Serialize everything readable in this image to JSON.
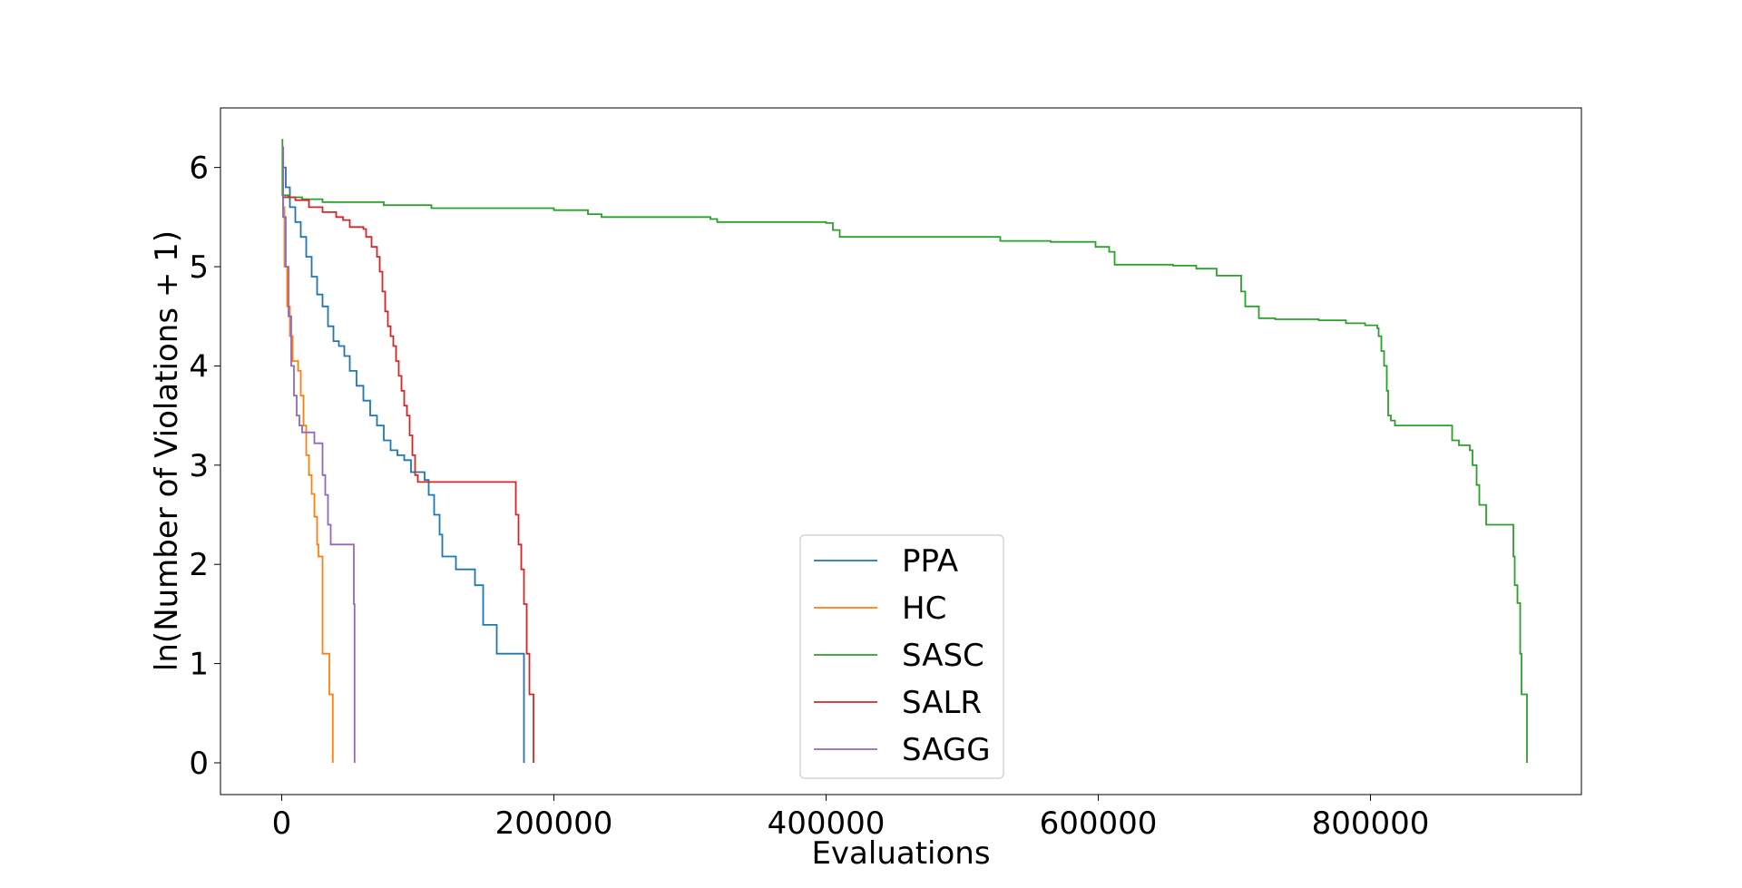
{
  "chart_data": {
    "type": "line",
    "title": "",
    "xlabel": "Evaluations",
    "ylabel": "ln(Number of Violations + 1)",
    "xlim": [
      -45000,
      955000
    ],
    "ylim": [
      -0.32,
      6.6
    ],
    "xticks": [
      0,
      200000,
      400000,
      600000,
      800000
    ],
    "yticks": [
      0,
      1,
      2,
      3,
      4,
      5,
      6
    ],
    "grid": false,
    "legend_position": "lower-center",
    "step": true,
    "series": [
      {
        "name": "PPA",
        "color": "#1f77b4",
        "points": [
          [
            0,
            6.2
          ],
          [
            1000,
            6.0
          ],
          [
            3000,
            5.8
          ],
          [
            6000,
            5.6
          ],
          [
            10000,
            5.45
          ],
          [
            14000,
            5.3
          ],
          [
            18000,
            5.1
          ],
          [
            22000,
            4.9
          ],
          [
            26000,
            4.72
          ],
          [
            30000,
            4.6
          ],
          [
            34000,
            4.4
          ],
          [
            38000,
            4.25
          ],
          [
            42000,
            4.2
          ],
          [
            46000,
            4.1
          ],
          [
            50000,
            3.95
          ],
          [
            55000,
            3.8
          ],
          [
            60000,
            3.65
          ],
          [
            65000,
            3.5
          ],
          [
            70000,
            3.4
          ],
          [
            75000,
            3.25
          ],
          [
            80000,
            3.15
          ],
          [
            85000,
            3.1
          ],
          [
            90000,
            3.05
          ],
          [
            95000,
            2.93
          ],
          [
            105000,
            2.85
          ],
          [
            108000,
            2.7
          ],
          [
            112000,
            2.5
          ],
          [
            116000,
            2.3
          ],
          [
            118000,
            2.08
          ],
          [
            128000,
            1.95
          ],
          [
            142000,
            1.79
          ],
          [
            148000,
            1.39
          ],
          [
            158000,
            1.1
          ],
          [
            178000,
            0.0
          ]
        ]
      },
      {
        "name": "HC",
        "color": "#ff7f0e",
        "points": [
          [
            0,
            6.2
          ],
          [
            1000,
            5.6
          ],
          [
            2000,
            5.0
          ],
          [
            4000,
            4.6
          ],
          [
            6000,
            4.3
          ],
          [
            8000,
            4.05
          ],
          [
            12000,
            3.95
          ],
          [
            14000,
            3.7
          ],
          [
            16000,
            3.4
          ],
          [
            18000,
            3.1
          ],
          [
            20000,
            2.9
          ],
          [
            22000,
            2.71
          ],
          [
            24000,
            2.48
          ],
          [
            26000,
            2.2
          ],
          [
            27000,
            2.08
          ],
          [
            30000,
            1.1
          ],
          [
            33000,
            1.1
          ],
          [
            35000,
            0.69
          ],
          [
            37000,
            0.69
          ],
          [
            37500,
            0.0
          ]
        ]
      },
      {
        "name": "SASC",
        "color": "#2ca02c",
        "points": [
          [
            0,
            6.28
          ],
          [
            500,
            5.72
          ],
          [
            5000,
            5.7
          ],
          [
            15000,
            5.68
          ],
          [
            30000,
            5.65
          ],
          [
            75000,
            5.62
          ],
          [
            110000,
            5.59
          ],
          [
            200000,
            5.57
          ],
          [
            225000,
            5.53
          ],
          [
            235000,
            5.5
          ],
          [
            315000,
            5.48
          ],
          [
            320000,
            5.45
          ],
          [
            400000,
            5.44
          ],
          [
            405000,
            5.37
          ],
          [
            410000,
            5.3
          ],
          [
            500000,
            5.3
          ],
          [
            528000,
            5.26
          ],
          [
            560000,
            5.26
          ],
          [
            565000,
            5.25
          ],
          [
            598000,
            5.2
          ],
          [
            608000,
            5.15
          ],
          [
            612000,
            5.02
          ],
          [
            655000,
            5.01
          ],
          [
            672000,
            4.98
          ],
          [
            687000,
            4.91
          ],
          [
            705000,
            4.75
          ],
          [
            708000,
            4.6
          ],
          [
            718000,
            4.48
          ],
          [
            730000,
            4.47
          ],
          [
            762000,
            4.46
          ],
          [
            782000,
            4.43
          ],
          [
            796000,
            4.41
          ],
          [
            805000,
            4.38
          ],
          [
            806000,
            4.3
          ],
          [
            808000,
            4.15
          ],
          [
            810000,
            4.0
          ],
          [
            812000,
            3.75
          ],
          [
            813000,
            3.5
          ],
          [
            815000,
            3.45
          ],
          [
            818000,
            3.4
          ],
          [
            858000,
            3.4
          ],
          [
            860000,
            3.25
          ],
          [
            865000,
            3.2
          ],
          [
            873000,
            3.15
          ],
          [
            875000,
            3.0
          ],
          [
            878000,
            2.8
          ],
          [
            880000,
            2.6
          ],
          [
            885000,
            2.4
          ],
          [
            903000,
            2.4
          ],
          [
            905000,
            2.08
          ],
          [
            906000,
            1.79
          ],
          [
            908000,
            1.61
          ],
          [
            910000,
            1.1
          ],
          [
            911000,
            0.69
          ],
          [
            915000,
            0.69
          ],
          [
            915000,
            0.0
          ]
        ]
      },
      {
        "name": "SALR",
        "color": "#d62728",
        "points": [
          [
            0,
            6.2
          ],
          [
            1000,
            5.7
          ],
          [
            10000,
            5.67
          ],
          [
            20000,
            5.6
          ],
          [
            30000,
            5.55
          ],
          [
            40000,
            5.5
          ],
          [
            45000,
            5.47
          ],
          [
            50000,
            5.4
          ],
          [
            55000,
            5.4
          ],
          [
            60000,
            5.38
          ],
          [
            62000,
            5.3
          ],
          [
            66000,
            5.2
          ],
          [
            70000,
            5.1
          ],
          [
            72000,
            4.95
          ],
          [
            74000,
            4.75
          ],
          [
            76000,
            4.55
          ],
          [
            78000,
            4.4
          ],
          [
            80000,
            4.3
          ],
          [
            82000,
            4.2
          ],
          [
            84000,
            4.05
          ],
          [
            86000,
            3.9
          ],
          [
            88000,
            3.75
          ],
          [
            90000,
            3.6
          ],
          [
            92000,
            3.5
          ],
          [
            94000,
            3.3
          ],
          [
            96000,
            3.1
          ],
          [
            98000,
            2.9
          ],
          [
            100000,
            2.83
          ],
          [
            170000,
            2.83
          ],
          [
            172000,
            2.5
          ],
          [
            174000,
            2.2
          ],
          [
            176000,
            1.95
          ],
          [
            178000,
            1.6
          ],
          [
            180000,
            1.1
          ],
          [
            182000,
            0.69
          ],
          [
            185000,
            0.69
          ],
          [
            185000,
            0.0
          ]
        ]
      },
      {
        "name": "SAGG",
        "color": "#9467bd",
        "points": [
          [
            0,
            6.2
          ],
          [
            1000,
            5.5
          ],
          [
            3000,
            5.0
          ],
          [
            5000,
            4.5
          ],
          [
            7000,
            4.0
          ],
          [
            9000,
            3.7
          ],
          [
            11000,
            3.5
          ],
          [
            13000,
            3.4
          ],
          [
            15000,
            3.33
          ],
          [
            22000,
            3.33
          ],
          [
            24000,
            3.22
          ],
          [
            28000,
            3.22
          ],
          [
            30000,
            2.9
          ],
          [
            32000,
            2.7
          ],
          [
            34000,
            2.4
          ],
          [
            36000,
            2.2
          ],
          [
            52000,
            2.2
          ],
          [
            53000,
            1.6
          ],
          [
            53500,
            0.0
          ]
        ]
      }
    ]
  }
}
